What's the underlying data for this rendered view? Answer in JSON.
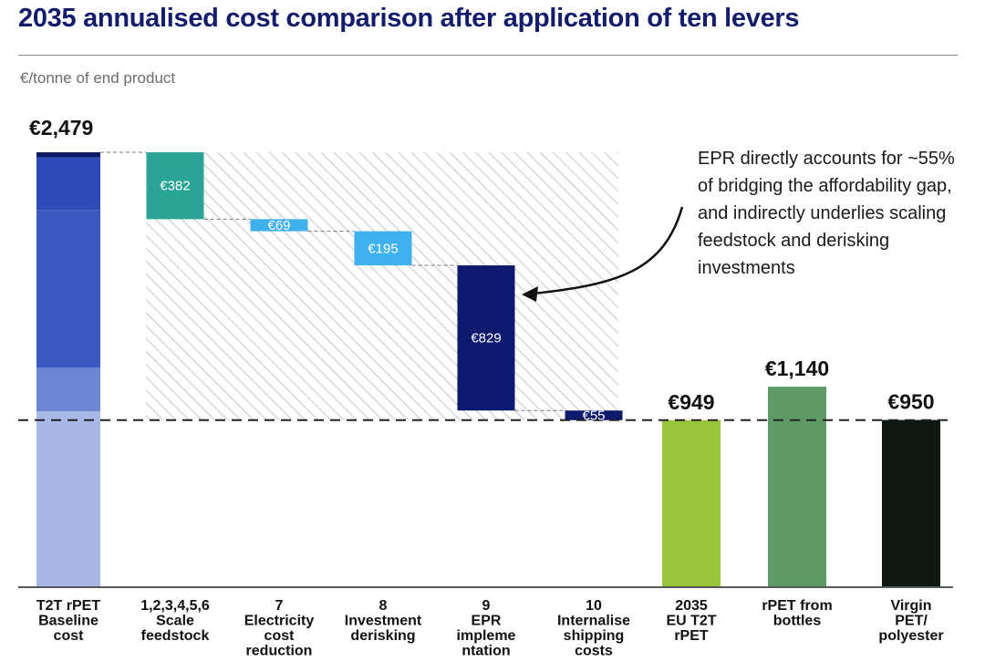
{
  "title": "2035 annualised cost comparison after application of ten levers",
  "unit_label": "€/tonne of end product",
  "annotation": "EPR directly accounts for ~55% of bridging the affordability gap, and indirectly underlies scaling feedstock and derisking investments",
  "colors": {
    "baseline_segments": [
      "#0d1b66",
      "#2e4cb8",
      "#3c58c2",
      "#6c86d1",
      "#a9b7e6"
    ],
    "lever_teal": "#2aa595",
    "lever_light_blue": "#3fb1ef",
    "lever_navy": "#0e1a6e",
    "eu_t2t": "#98c43a",
    "rpet_bottles": "#5e9a66",
    "virgin": "#0f1711",
    "hatch": "#d7d7d7",
    "dashed_line": "#222222"
  },
  "chart_data": {
    "type": "waterfall",
    "unit": "€/tonne of end product",
    "reference_line": 949,
    "baseline": {
      "category": [
        "T2T rPET",
        "Baseline",
        "cost"
      ],
      "value": 2479,
      "label": "€2,479",
      "segments": [
        2479,
        2450,
        2150,
        1250,
        1000
      ]
    },
    "levers": [
      {
        "category": [
          "1,2,3,4,5,6",
          "Scale",
          "feedstock"
        ],
        "value": 382,
        "label": "€382",
        "color": "teal"
      },
      {
        "category": [
          "7",
          "Electricity",
          "cost",
          "reduction"
        ],
        "value": 69,
        "label": "€69",
        "color": "light_blue"
      },
      {
        "category": [
          "8",
          "Investment",
          "derisking"
        ],
        "value": 195,
        "label": "€195",
        "color": "light_blue"
      },
      {
        "category": [
          "9",
          "EPR",
          "impleme",
          "ntation"
        ],
        "value": 829,
        "label": "€829",
        "color": "navy"
      },
      {
        "category": [
          "10",
          "Internalise",
          "shipping",
          "costs"
        ],
        "value": 55,
        "label": "€55",
        "color": "navy"
      }
    ],
    "comparisons": [
      {
        "category": [
          "2035",
          "EU T2T",
          "rPET"
        ],
        "value": 949,
        "label": "€949",
        "color": "eu_t2t"
      },
      {
        "category": [
          "rPET from",
          "bottles"
        ],
        "value": 1140,
        "label": "€1,140",
        "color": "rpet_bottles"
      },
      {
        "category": [
          "Virgin",
          "PET/",
          "polyester"
        ],
        "value": 950,
        "label": "€950",
        "color": "virgin"
      }
    ]
  }
}
